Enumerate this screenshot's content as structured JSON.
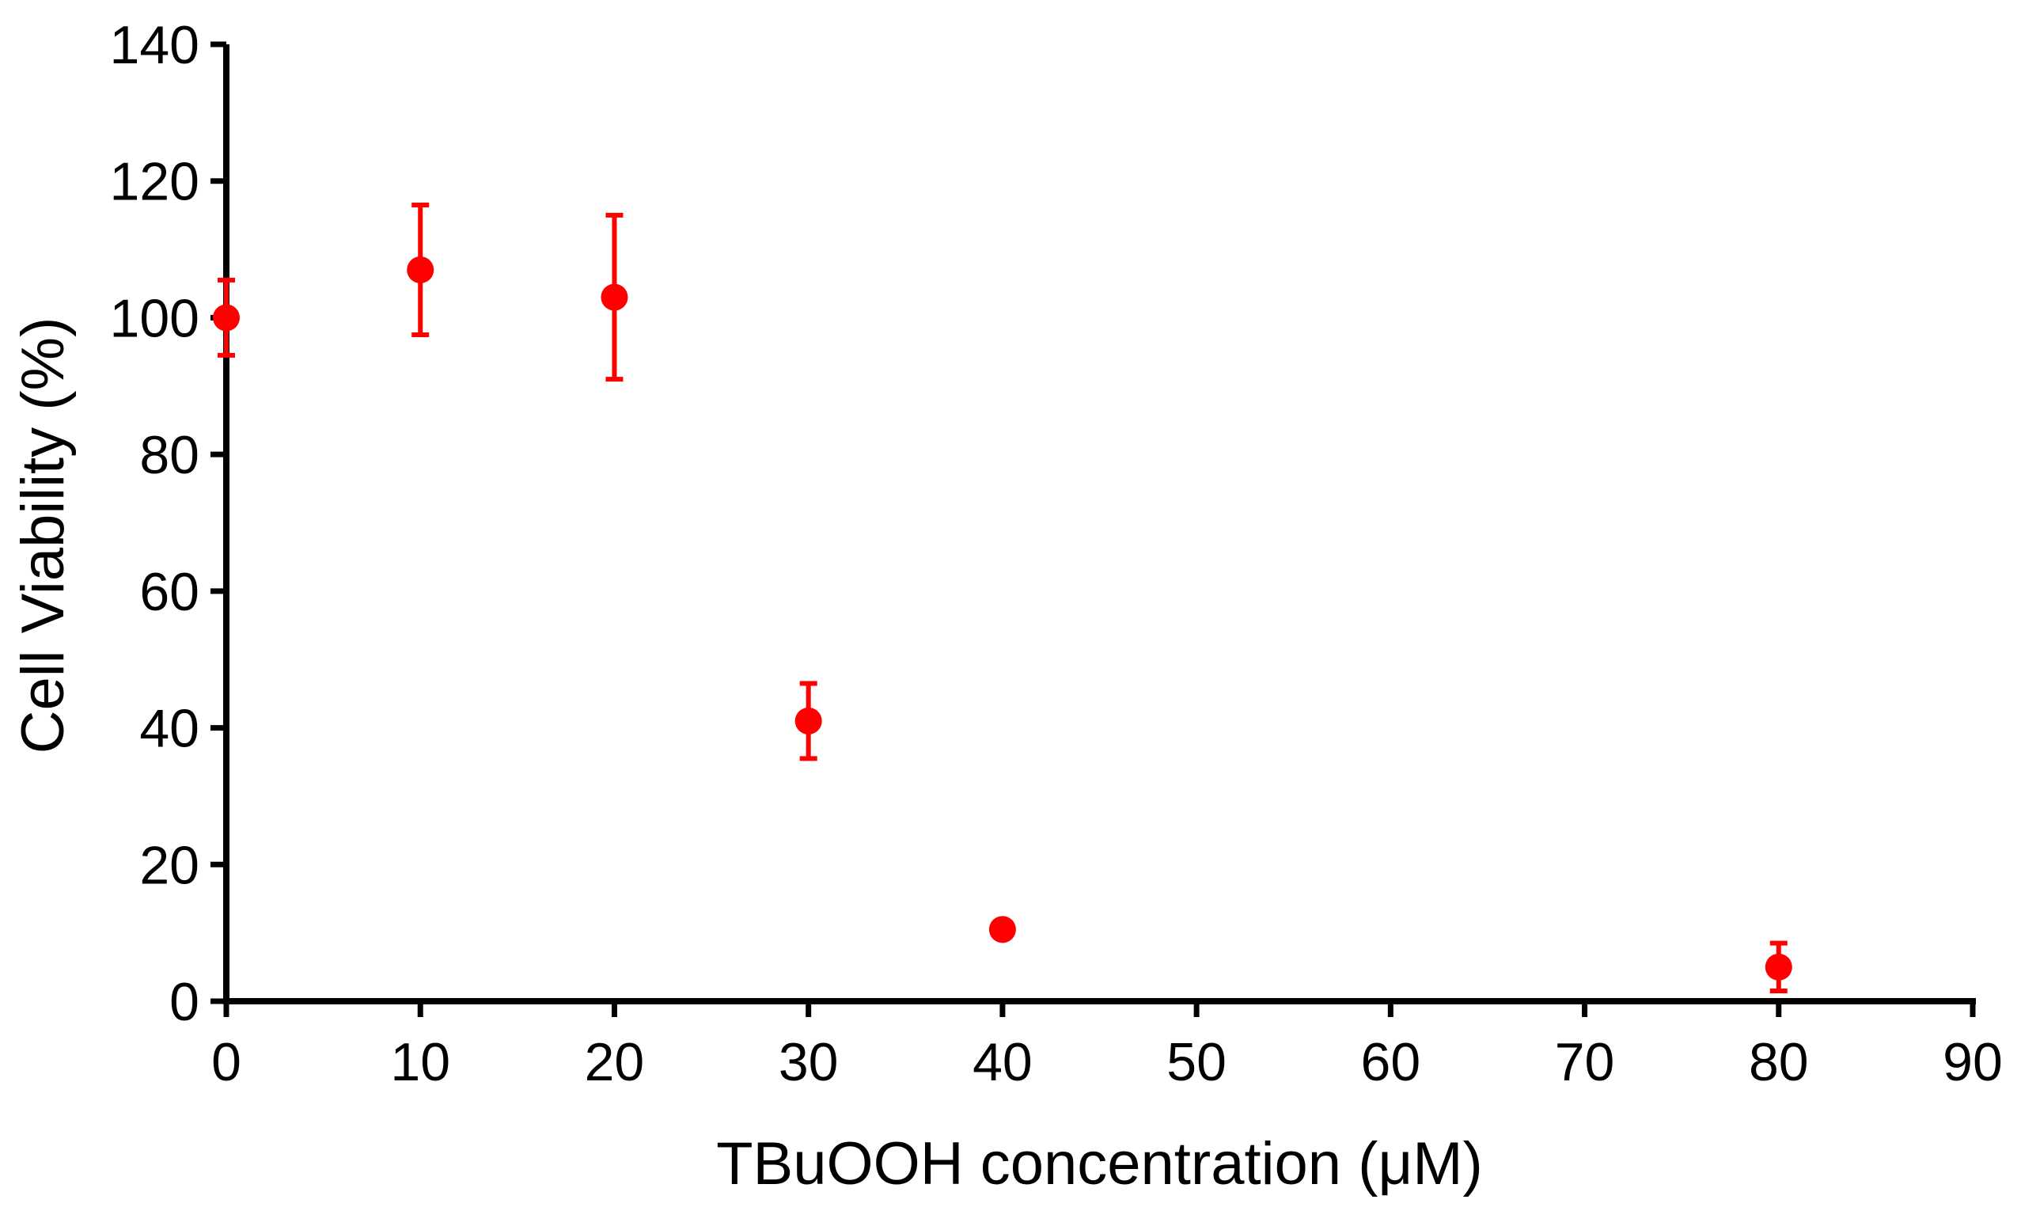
{
  "chart_data": {
    "type": "scatter",
    "title": "",
    "xlabel": "TBuOOH concentration (μM)",
    "ylabel": "Cell Viability (%)",
    "xlim": [
      0,
      90
    ],
    "ylim": [
      0,
      140
    ],
    "xticks": [
      0,
      10,
      20,
      30,
      40,
      50,
      60,
      70,
      80,
      90
    ],
    "yticks": [
      0,
      20,
      40,
      60,
      80,
      100,
      120,
      140
    ],
    "grid": false,
    "colors": {
      "series": "#ff0000",
      "axis": "#000000"
    },
    "series": [
      {
        "points": [
          {
            "x": 0,
            "y": 100,
            "err": 5.5
          },
          {
            "x": 10,
            "y": 107,
            "err": 9.5
          },
          {
            "x": 20,
            "y": 103,
            "err": 12
          },
          {
            "x": 30,
            "y": 41,
            "err": 5.5
          },
          {
            "x": 40,
            "y": 10.5,
            "err": 0
          },
          {
            "x": 80,
            "y": 5,
            "err": 3.5
          }
        ]
      }
    ]
  }
}
